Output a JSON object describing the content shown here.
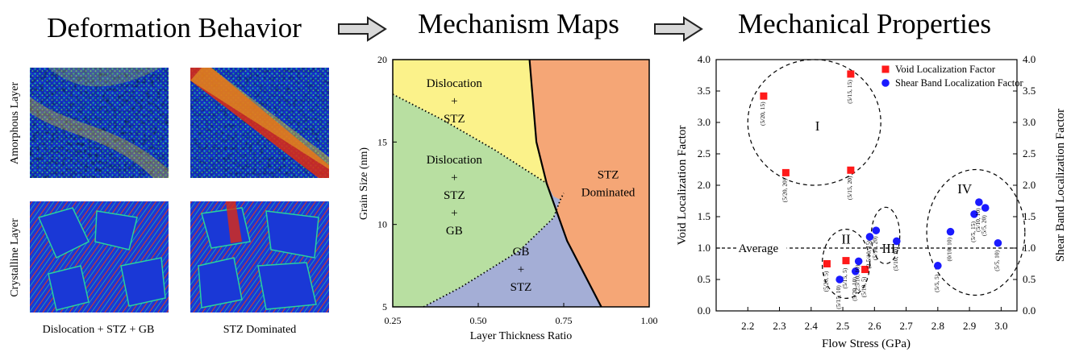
{
  "headings": {
    "deformation": "Deformation Behavior",
    "mechanism": "Mechanism Maps",
    "mechanical": "Mechanical Properties"
  },
  "snapshots": {
    "row_labels": [
      "Amorphous Layer",
      "Crystalline Layer"
    ],
    "col_labels": [
      "Dislocation + STZ + GB",
      "STZ Dominated"
    ]
  },
  "mechanism_map": {
    "xlabel": "Layer Thickness Ratio",
    "ylabel": "Grain Size (nm)",
    "xlim": [
      0.25,
      1.0
    ],
    "ylim": [
      5,
      20
    ],
    "xticks": [
      "0.25",
      "0.50",
      "0.75",
      "1.00"
    ],
    "yticks": [
      "5",
      "10",
      "15",
      "20"
    ],
    "regions": [
      {
        "name": "Dislocation + STZ",
        "lines": [
          "Dislocation",
          "+",
          "STZ"
        ],
        "color": "#fbf28a"
      },
      {
        "name": "Dislocation + STZ + GB",
        "lines": [
          "Dislocation",
          "+",
          "STZ",
          "+",
          "GB"
        ],
        "color": "#b8dfa1"
      },
      {
        "name": "GB + STZ",
        "lines": [
          "GB",
          "+",
          "STZ"
        ],
        "color": "#a4aed6"
      },
      {
        "name": "STZ Dominated",
        "lines": [
          "STZ",
          "Dominated"
        ],
        "color": "#f5a676"
      }
    ],
    "boundaries": {
      "solid": [
        [
          0.65,
          20
        ],
        [
          0.67,
          15
        ],
        [
          0.7,
          12.5
        ],
        [
          0.76,
          9
        ],
        [
          0.86,
          5
        ]
      ],
      "dotted_upper": [
        [
          0.25,
          17.9
        ],
        [
          0.4,
          16.3
        ],
        [
          0.55,
          14.5
        ],
        [
          0.7,
          12.5
        ]
      ],
      "dotted_lower": [
        [
          0.34,
          5
        ],
        [
          0.45,
          6.2
        ],
        [
          0.62,
          8.4
        ],
        [
          0.72,
          10.4
        ],
        [
          0.74,
          11.5
        ]
      ]
    }
  },
  "chart_data": {
    "type": "scatter",
    "xlabel": "Flow Stress (GPa)",
    "ylabel": "Void Localization Factor",
    "y2label": "Shear Band Localization Factor",
    "xlim": [
      2.1,
      3.05
    ],
    "ylim": [
      0,
      4
    ],
    "xticks": [
      "2.2",
      "2.3",
      "2.4",
      "2.5",
      "2.6",
      "2.7",
      "2.8",
      "2.9",
      "3.0"
    ],
    "yticks": [
      "0.0",
      "0.5",
      "1.0",
      "1.5",
      "2.0",
      "2.5",
      "3.0",
      "3.5",
      "4.0"
    ],
    "average": {
      "y": 1.0,
      "label": "Average"
    },
    "legend_position": "top-right",
    "series": [
      {
        "name": "Void Localization Factor",
        "color": "#ff1a1a",
        "marker": "square",
        "points": [
          {
            "x": 2.25,
            "y": 3.42,
            "label": "(5/20, 15)"
          },
          {
            "x": 2.525,
            "y": 3.77,
            "label": "(5/15, 15)"
          },
          {
            "x": 2.32,
            "y": 2.2,
            "label": "(5/20, 20)"
          },
          {
            "x": 2.525,
            "y": 2.24,
            "label": "(5/15, 20)"
          },
          {
            "x": 2.45,
            "y": 0.75,
            "label": "(5/20, 5)"
          },
          {
            "x": 2.51,
            "y": 0.8,
            "label": "(5/15, 5)"
          },
          {
            "x": 2.57,
            "y": 0.66,
            "label": "(5/10, 5)"
          }
        ]
      },
      {
        "name": "Shear Band Localization Factor",
        "color": "#1a1aff",
        "marker": "circle",
        "points": [
          {
            "x": 2.49,
            "y": 0.5,
            "label": "(5/15, 10)"
          },
          {
            "x": 2.54,
            "y": 0.63,
            "label": "(5/20, 10)"
          },
          {
            "x": 2.55,
            "y": 0.79,
            "label": "(2.5/10, 10)"
          },
          {
            "x": 2.585,
            "y": 1.18,
            "label": "(2.5/10, 15)"
          },
          {
            "x": 2.605,
            "y": 1.28,
            "label": "(5/10, 20)"
          },
          {
            "x": 2.67,
            "y": 1.11,
            "label": "(5/10, 10)"
          },
          {
            "x": 2.8,
            "y": 0.72,
            "label": "(5/5, 5)"
          },
          {
            "x": 2.84,
            "y": 1.26,
            "label": "(0/10, 10)"
          },
          {
            "x": 2.915,
            "y": 1.54,
            "label": "(5/5, 15)"
          },
          {
            "x": 2.93,
            "y": 1.73,
            "label": "(5/10, 10)"
          },
          {
            "x": 2.95,
            "y": 1.64,
            "label": "(5/5, 20)"
          },
          {
            "x": 2.99,
            "y": 1.08,
            "label": "(5/5, 10)"
          }
        ]
      }
    ],
    "groups": [
      {
        "label": "I",
        "center": [
          2.41,
          3.0
        ],
        "radius": [
          0.21,
          1.0
        ]
      },
      {
        "label": "II",
        "center": [
          2.51,
          0.75
        ],
        "radius": [
          0.075,
          0.55
        ]
      },
      {
        "label": "III",
        "center": [
          2.635,
          1.2
        ],
        "radius": [
          0.045,
          0.45
        ]
      },
      {
        "label": "IV",
        "center": [
          2.92,
          1.25
        ],
        "radius": [
          0.155,
          1.0
        ]
      }
    ]
  }
}
